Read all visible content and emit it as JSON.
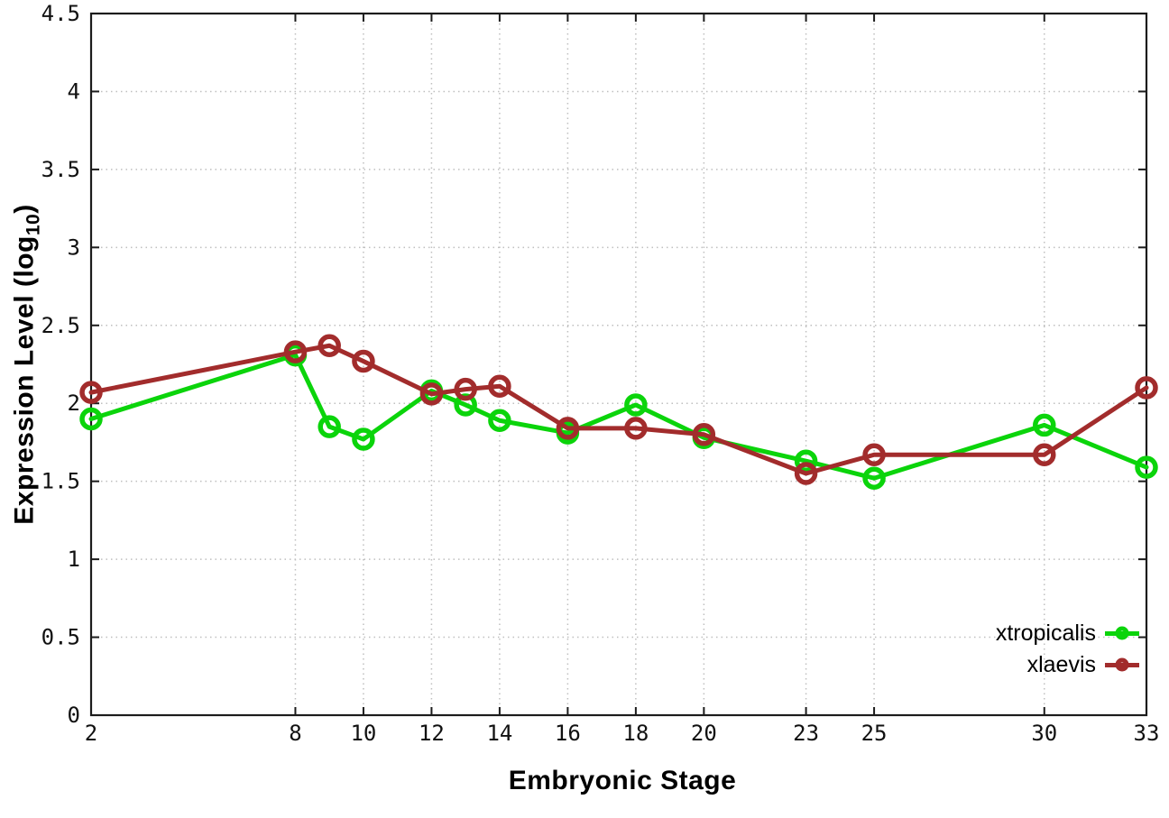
{
  "figure": {
    "title": "",
    "xlabel": "Embryonic Stage",
    "ylabel_main": "Expression Level (log",
    "ylabel_sub": "10",
    "ylabel_close": ")"
  },
  "chart_data": {
    "type": "line",
    "title": "",
    "xlabel": "Embryonic Stage",
    "ylabel": "Expression Level (log10)",
    "x": [
      2,
      8,
      9,
      10,
      12,
      13,
      14,
      16,
      18,
      20,
      23,
      25,
      30,
      33
    ],
    "series": [
      {
        "name": "xtropicalis",
        "color": "#0bd40b",
        "values": [
          1.9,
          2.31,
          1.85,
          1.77,
          2.08,
          1.99,
          1.89,
          1.81,
          1.99,
          1.78,
          1.63,
          1.52,
          1.86,
          1.59
        ]
      },
      {
        "name": "xlaevis",
        "color": "#a22c2c",
        "values": [
          2.07,
          2.33,
          2.37,
          2.27,
          2.06,
          2.09,
          2.11,
          1.84,
          1.84,
          1.8,
          1.55,
          1.67,
          1.67,
          2.1
        ]
      }
    ],
    "xticks": [
      2,
      8,
      10,
      12,
      14,
      16,
      18,
      20,
      23,
      25,
      30,
      33
    ],
    "yticks": [
      0,
      0.5,
      1,
      1.5,
      2,
      2.5,
      3,
      3.5,
      4,
      4.5
    ],
    "xlim": [
      2,
      33
    ],
    "ylim": [
      0,
      4.5
    ],
    "grid": true,
    "marker": "open-circle",
    "legend_position": "inside-bottom-right",
    "background_color": "#ffffff",
    "grid_color": "#bfbfbf",
    "border_color": "#1c1c1c",
    "tick_label_color": "#111111"
  }
}
